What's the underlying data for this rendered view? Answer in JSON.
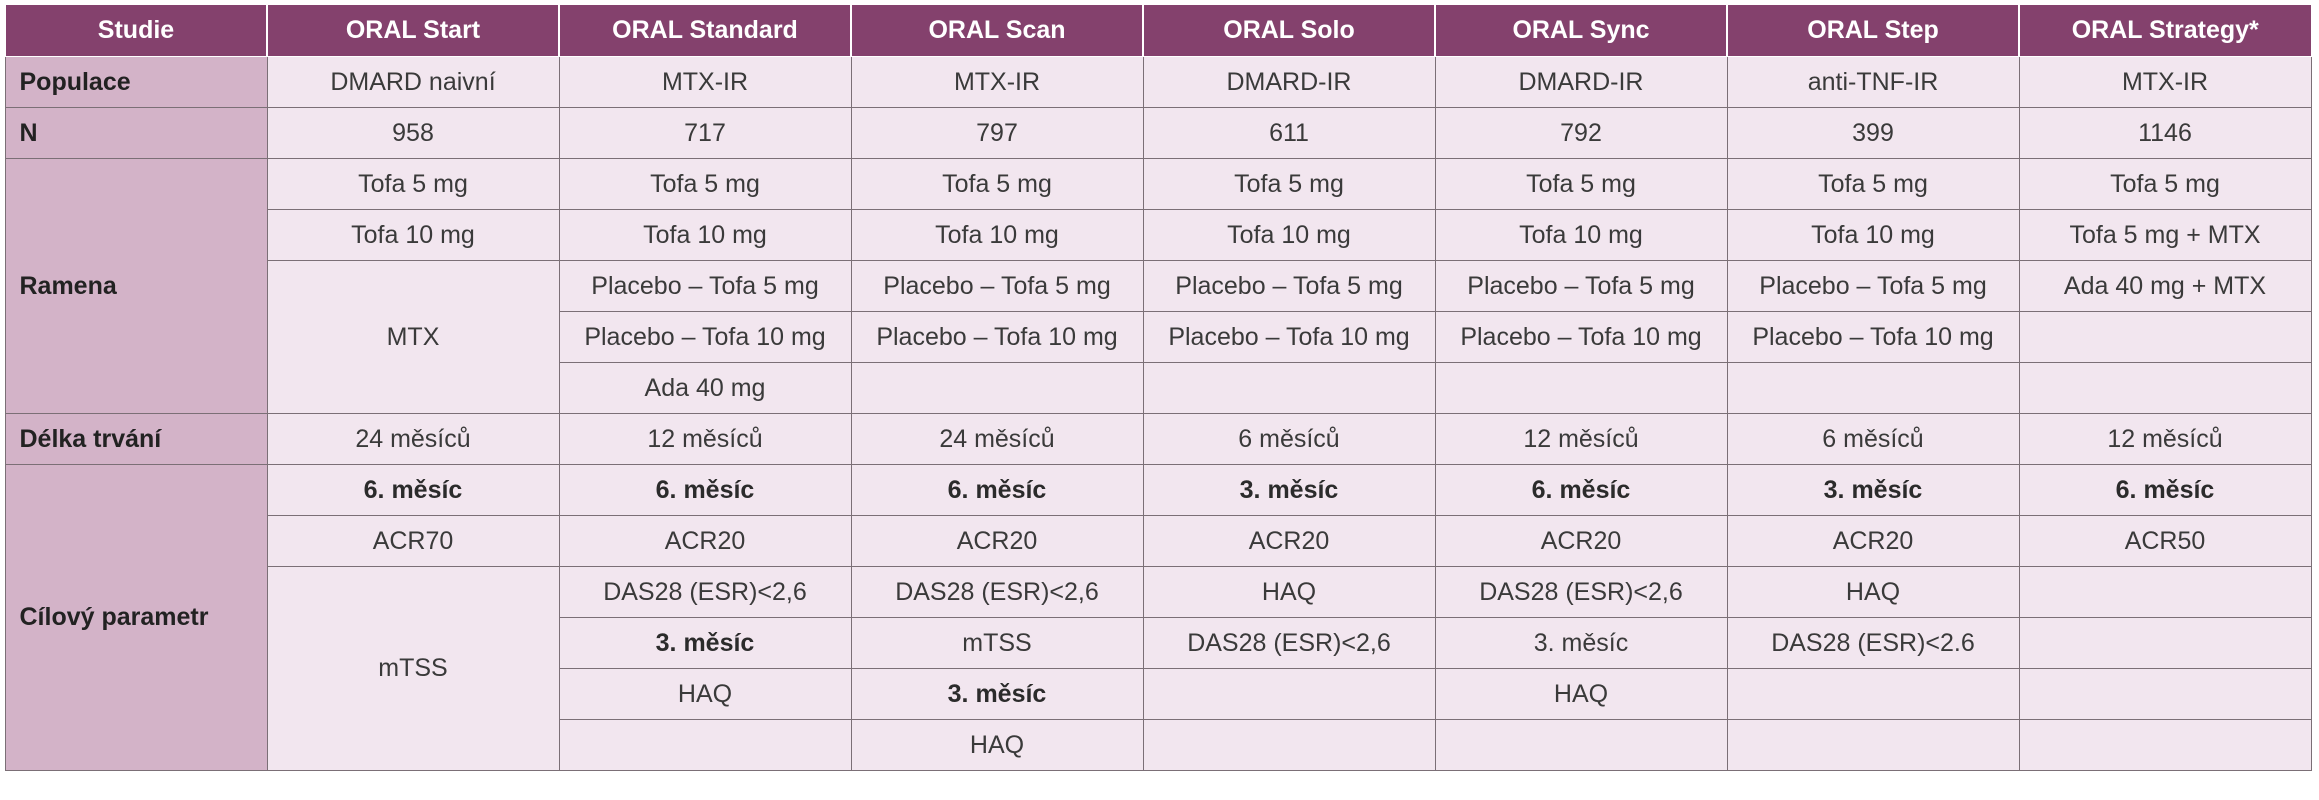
{
  "header": {
    "studie": "Studie",
    "studies": [
      "ORAL Start",
      "ORAL Standard",
      "ORAL Scan",
      "ORAL Solo",
      "ORAL Sync",
      "ORAL Step",
      "ORAL Strategy*"
    ]
  },
  "rows": {
    "populace": {
      "label": "Populace",
      "values": [
        "DMARD naivní",
        "MTX-IR",
        "MTX-IR",
        "DMARD-IR",
        "DMARD-IR",
        "anti-TNF-IR",
        "MTX-IR"
      ]
    },
    "n": {
      "label": "N",
      "values": [
        "958",
        "717",
        "797",
        "611",
        "792",
        "399",
        "1146"
      ]
    },
    "ramena": {
      "label": "Ramena",
      "r1": [
        "Tofa 5 mg",
        "Tofa 5 mg",
        "Tofa 5 mg",
        "Tofa 5 mg",
        "Tofa 5 mg",
        "Tofa 5 mg",
        "Tofa 5 mg"
      ],
      "r2": [
        "Tofa 10 mg",
        "Tofa 10 mg",
        "Tofa 10 mg",
        "Tofa 10 mg",
        "Tofa 10 mg",
        "Tofa 10 mg",
        "Tofa 5 mg + MTX"
      ],
      "start_mtx": "MTX",
      "r3": [
        "Placebo – Tofa 5 mg",
        "Placebo – Tofa 5 mg",
        "Placebo – Tofa 5 mg",
        "Placebo – Tofa 5 mg",
        "Placebo – Tofa 5 mg",
        "Ada 40 mg + MTX"
      ],
      "r4": [
        "Placebo – Tofa 10 mg",
        "Placebo – Tofa 10 mg",
        "Placebo – Tofa 10 mg",
        "Placebo – Tofa 10 mg",
        "Placebo – Tofa 10 mg",
        ""
      ],
      "r5": [
        "Ada 40 mg",
        "",
        "",
        "",
        "",
        ""
      ]
    },
    "delka": {
      "label": "Délka trvání",
      "values": [
        "24 měsíců",
        "12 měsíců",
        "24 měsíců",
        "6 měsíců",
        "12 měsíců",
        "6 měsíců",
        "12 měsíců"
      ]
    },
    "cilovy": {
      "label": "Cílový parametr",
      "c1": [
        "6. měsíc",
        "6. měsíc",
        "6. měsíc",
        "3. měsíc",
        "6. měsíc",
        "3. měsíc",
        "6. měsíc"
      ],
      "c2": [
        "ACR70",
        "ACR20",
        "ACR20",
        "ACR20",
        "ACR20",
        "ACR20",
        "ACR50"
      ],
      "start_mtss": "mTSS",
      "c3": [
        "DAS28 (ESR)<2,6",
        "DAS28 (ESR)<2,6",
        "HAQ",
        "DAS28 (ESR)<2,6",
        "HAQ",
        ""
      ],
      "c4": [
        "3. měsíc",
        "mTSS",
        "DAS28 (ESR)<2,6",
        "3. měsíc",
        "DAS28 (ESR)<2.6",
        ""
      ],
      "c5": [
        "HAQ",
        "3. měsíc",
        "",
        "HAQ",
        "",
        ""
      ],
      "c6": [
        "",
        "HAQ",
        "",
        "",
        "",
        ""
      ]
    }
  }
}
